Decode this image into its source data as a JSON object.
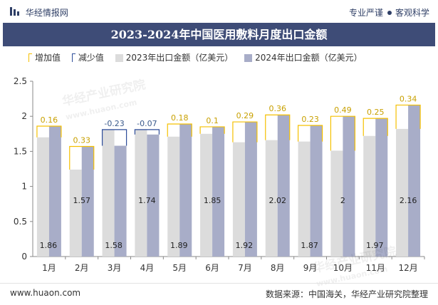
{
  "header": {
    "brand": "华经情报网",
    "tag1": "专业严谨",
    "tag2": "客观科学"
  },
  "title": "2023-2024年中国医用敷料月度出口金额",
  "legend": {
    "increase": "增加值",
    "decrease": "减少值",
    "s2023": "2023年出口金额（亿美元）",
    "s2024": "2024年出口金额（亿美元）"
  },
  "watermark": {
    "name": "华经产业研究院",
    "url": "www.huaon.com"
  },
  "footer": {
    "site": "www.huaon.com",
    "source": "数据来源：中国海关，华经产业研究院整理"
  },
  "colors": {
    "title_bg": "#3e4c77",
    "bar_2023": "#dcdcdc",
    "bar_2024": "#a8adc8",
    "increase": "#f5c000",
    "decrease": "#2d4d9a",
    "increase_label": "#c8a000",
    "decrease_label": "#3a5a8c"
  },
  "chart_data": {
    "type": "bar",
    "categories": [
      "1月",
      "2月",
      "3月",
      "4月",
      "5月",
      "6月",
      "7月",
      "8月",
      "9月",
      "10月",
      "11月",
      "12月"
    ],
    "series": [
      {
        "name": "2023年出口金额（亿美元）",
        "values": [
          1.7,
          1.24,
          1.81,
          1.81,
          1.71,
          1.75,
          1.63,
          1.66,
          1.64,
          1.51,
          1.72,
          1.82
        ]
      },
      {
        "name": "2024年出口金额（亿美元）",
        "values": [
          1.86,
          1.57,
          1.58,
          1.74,
          1.89,
          1.85,
          1.92,
          2.02,
          1.87,
          2,
          1.97,
          2.16
        ]
      }
    ],
    "changes": [
      0.16,
      0.33,
      -0.23,
      -0.07,
      0.18,
      0.1,
      0.29,
      0.36,
      0.23,
      0.49,
      0.25,
      0.34
    ],
    "change_labels": [
      "0.16",
      "0.33",
      "-0.23",
      "-0.07",
      "0.18",
      "0.1",
      "0.29",
      "0.36",
      "0.23",
      "0.49",
      "0.25",
      "0.34"
    ],
    "value_labels_2024": [
      "1.86",
      "1.57",
      "1.58",
      "1.74",
      "1.89",
      "1.85",
      "1.92",
      "2.02",
      "1.87",
      "2",
      "1.97",
      "2.16"
    ],
    "yticks": [
      "0",
      "0.5",
      "1",
      "1.5",
      "2",
      "2.5"
    ],
    "ylim": [
      0,
      2.5
    ],
    "xlabel": "",
    "ylabel": "",
    "grid": false,
    "legend_position": "top"
  }
}
